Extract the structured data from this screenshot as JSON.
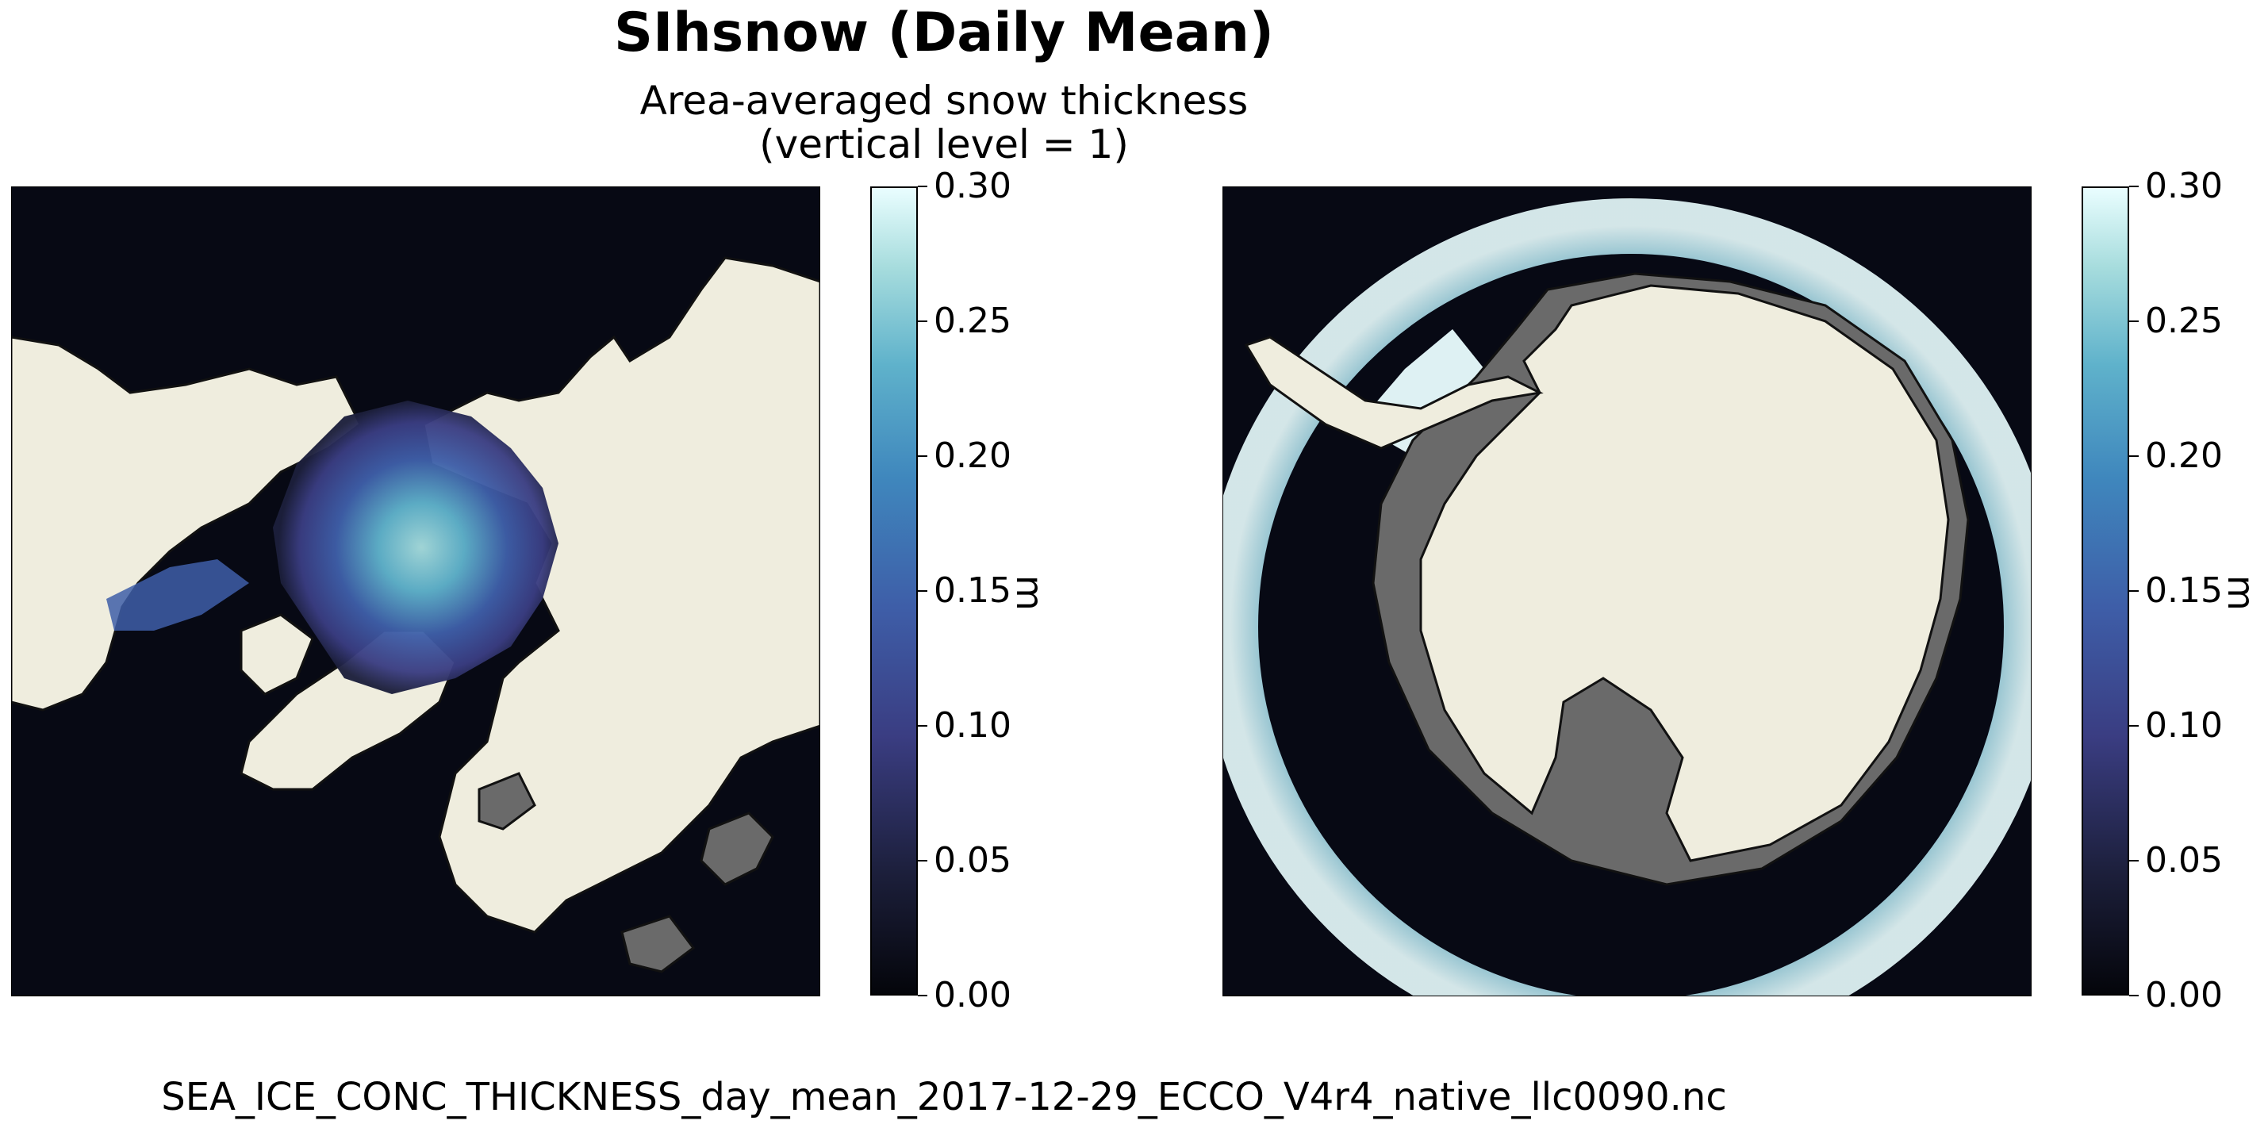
{
  "figure": {
    "title": "SIhsnow (Daily Mean)",
    "subtitle_line1": "Area-averaged snow thickness",
    "subtitle_line2": "(vertical level = 1)",
    "filename": "SEA_ICE_CONC_THICKNESS_day_mean_2017-12-29_ECCO_V4r4_native_llc0090.nc"
  },
  "colorbar": {
    "unit": "m",
    "ticks": [
      "0.00",
      "0.05",
      "0.10",
      "0.15",
      "0.20",
      "0.25",
      "0.30"
    ],
    "range": [
      0.0,
      0.3
    ],
    "colormap": "ice",
    "colors": [
      "#04050a",
      "#1c1f3b",
      "#3a3d82",
      "#3e5ea8",
      "#3f87bd",
      "#5fb2cb",
      "#a6dcdd",
      "#eafeff"
    ]
  },
  "maps": [
    {
      "name": "arctic",
      "projection": "north-polar-stereographic",
      "variable": "SIhsnow"
    },
    {
      "name": "antarctic",
      "projection": "south-polar-stereographic",
      "variable": "SIhsnow"
    }
  ],
  "colors": {
    "ocean": "#070914",
    "land": "#efedde",
    "ice_shelf": "#6a6a6a",
    "coast": "#111111"
  }
}
